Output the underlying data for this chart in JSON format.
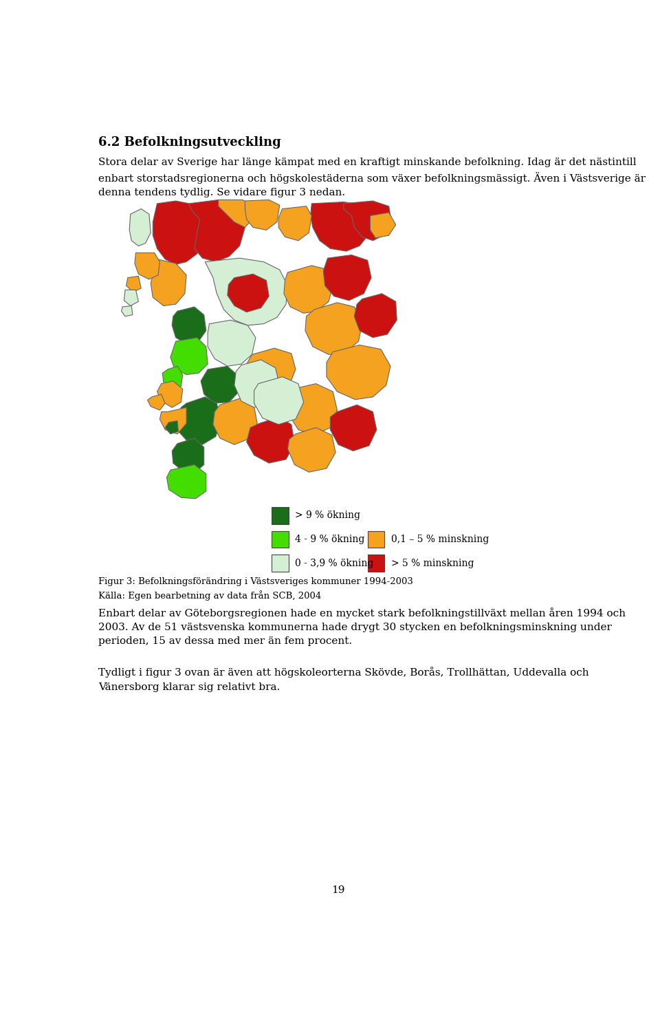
{
  "title": "6.2 Befolkningsutveckling",
  "paragraph1": "Stora delar av Sverige har länge kämpat med en kraftigt minskande befolkning. Idag är det nästintill\nenbart storstadsregionerna och högskolestäderna som växer befolkningsmässigt. Även i Västsverige är\ndenna tendens tydlig. Se vidare figur 3 nedan.",
  "figure_caption": "Figur 3: Befolkningsförändring i Västsveriges kommuner 1994-2003\nKälla: Egen bearbetning av data från SCB, 2004",
  "paragraph2": "Enbart delar av Göteborgsregionen hade en mycket stark befolkningstillväxt mellan åren 1994 och\n2003. Av de 51 västsvenska kommunerna hade drygt 30 stycken en befolkningsminskning under\nperioden, 15 av dessa med mer än fem procent.",
  "paragraph3": "Tydligt i figur 3 ovan är även att högskoleorterna Skövde, Borås, Trollhättan, Uddevalla och\nVänersborg klarar sig relativt bra.",
  "page_number": "19",
  "colors": {
    "dark_green": "#1a6e1a",
    "light_green": "#44dd00",
    "pale_green": "#d4efd4",
    "orange": "#f5a220",
    "red": "#cc1111"
  },
  "legend_items": [
    {
      "color": "#1a6e1a",
      "label": "> 9 % ökning",
      "col": 0
    },
    {
      "color": "#44dd00",
      "label": "4 - 9 % ökning",
      "col": 0
    },
    {
      "color": "#d4efd4",
      "label": "0 - 3,9 % ökning",
      "col": 0
    },
    {
      "color": "#f5a220",
      "label": "0,1 – 5 % minskning",
      "col": 1
    },
    {
      "color": "#cc1111",
      "label": "> 5 % minskning",
      "col": 1
    }
  ],
  "bg_color": "#ffffff",
  "text_color": "#000000",
  "font_size_title": 13,
  "font_size_body": 11,
  "font_size_caption": 9.5
}
